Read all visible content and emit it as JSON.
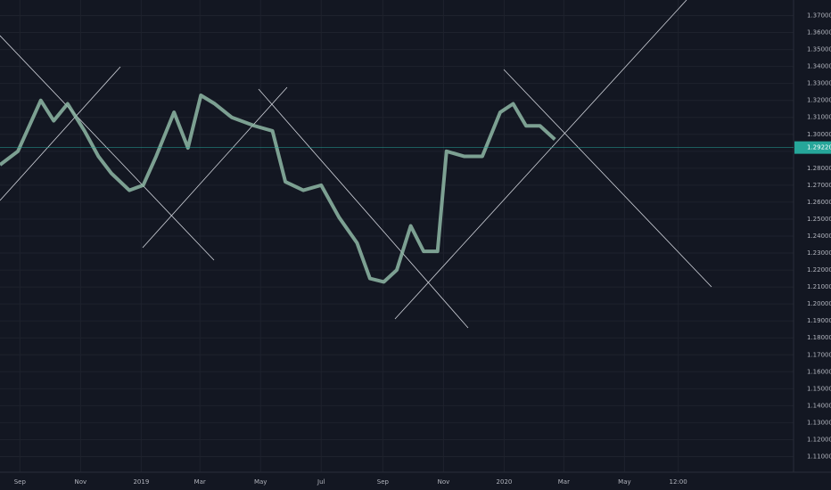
{
  "chart_data": {
    "type": "line",
    "x": [
      -20,
      -2,
      21,
      34,
      48,
      65,
      79,
      92,
      110,
      124,
      137,
      155,
      169,
      182,
      196,
      213,
      236,
      254,
      267,
      285,
      303,
      321,
      339,
      352,
      366,
      379,
      393,
      406,
      420,
      429,
      447,
      465,
      483,
      496,
      509,
      523,
      538
    ],
    "series": [
      {
        "color": "#8fb8a6",
        "values": [
          1.282,
          1.29,
          1.32,
          1.308,
          1.318,
          1.302,
          1.287,
          1.277,
          1.267,
          1.27,
          1.287,
          1.313,
          1.292,
          1.323,
          1.318,
          1.31,
          1.305,
          1.302,
          1.272,
          1.267,
          1.27,
          1.251,
          1.236,
          1.215,
          1.213,
          1.22,
          1.246,
          1.231,
          1.231,
          1.29,
          1.287,
          1.287,
          1.313,
          1.318,
          1.305,
          1.305,
          1.297
        ]
      }
    ],
    "xlim": [
      -20,
      778
    ],
    "xticks": [
      {
        "value": 0,
        "label": "Sep"
      },
      {
        "value": 61,
        "label": "Nov"
      },
      {
        "value": 122,
        "label": "2019"
      },
      {
        "value": 181,
        "label": "Mar"
      },
      {
        "value": 242,
        "label": "May"
      },
      {
        "value": 303,
        "label": "Jul"
      },
      {
        "value": 365,
        "label": "Sep"
      },
      {
        "value": 426,
        "label": "Nov"
      },
      {
        "value": 487,
        "label": "2020"
      },
      {
        "value": 547,
        "label": "Mar"
      },
      {
        "value": 608,
        "label": "May"
      },
      {
        "value": 662,
        "label": "12:00"
      }
    ],
    "ylim": [
      1.1008,
      1.3792
    ],
    "yticks": [
      {
        "value": 1.37,
        "label": "1.37000"
      },
      {
        "value": 1.36,
        "label": "1.36000"
      },
      {
        "value": 1.35,
        "label": "1.35000"
      },
      {
        "value": 1.34,
        "label": "1.34000"
      },
      {
        "value": 1.33,
        "label": "1.33000"
      },
      {
        "value": 1.32,
        "label": "1.32000"
      },
      {
        "value": 1.31,
        "label": "1.31000"
      },
      {
        "value": 1.3,
        "label": "1.30000"
      },
      {
        "value": 1.29,
        "label": "1.29000"
      },
      {
        "value": 1.28,
        "label": "1.28000"
      },
      {
        "value": 1.27,
        "label": "1.27000"
      },
      {
        "value": 1.26,
        "label": "1.26000"
      },
      {
        "value": 1.25,
        "label": "1.25000"
      },
      {
        "value": 1.24,
        "label": "1.24000"
      },
      {
        "value": 1.23,
        "label": "1.23000"
      },
      {
        "value": 1.22,
        "label": "1.22000"
      },
      {
        "value": 1.21,
        "label": "1.21000"
      },
      {
        "value": 1.2,
        "label": "1.20000"
      },
      {
        "value": 1.19,
        "label": "1.19000"
      },
      {
        "value": 1.18,
        "label": "1.18000"
      },
      {
        "value": 1.17,
        "label": "1.17000"
      },
      {
        "value": 1.16,
        "label": "1.16000"
      },
      {
        "value": 1.15,
        "label": "1.15000"
      },
      {
        "value": 1.14,
        "label": "1.14000"
      },
      {
        "value": 1.13,
        "label": "1.13000"
      },
      {
        "value": 1.12,
        "label": "1.12000"
      },
      {
        "value": 1.11,
        "label": "1.11000"
      }
    ],
    "last_price": {
      "value": 1.2922,
      "label": "1.29220"
    },
    "grid": true
  }
}
